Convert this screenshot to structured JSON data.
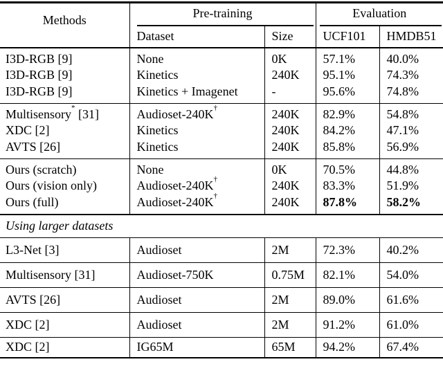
{
  "header": {
    "methods": "Methods",
    "pretraining_group": "Pre-training",
    "evaluation_group": "Evaluation",
    "columns": [
      "Dataset",
      "Size",
      "UCF101",
      "HMDB51"
    ]
  },
  "section_label": "Using larger datasets",
  "groups": [
    {
      "name": "supervised-baselines",
      "rows": [
        {
          "method": "I3D-RGB [9]",
          "dataset": "None",
          "size": "0K",
          "ucf101": "57.1%",
          "hmdb51": "40.0%"
        },
        {
          "method": "I3D-RGB [9]",
          "dataset": "Kinetics",
          "size": "240K",
          "ucf101": "95.1%",
          "hmdb51": "74.3%"
        },
        {
          "method": "I3D-RGB [9]",
          "dataset": "Kinetics + Imagenet",
          "size": "-",
          "ucf101": "95.6%",
          "hmdb51": "74.8%"
        }
      ]
    },
    {
      "name": "self-supervised-240k",
      "rows": [
        {
          "method": "Multisensory",
          "method_sup": "*",
          "method_ref": " [31]",
          "dataset": "Audioset-240K",
          "dataset_sup": "†",
          "size": "240K",
          "ucf101": "82.9%",
          "hmdb51": "54.8%"
        },
        {
          "method": "XDC [2]",
          "dataset": "Kinetics",
          "size": "240K",
          "ucf101": "84.2%",
          "hmdb51": "47.1%"
        },
        {
          "method": "AVTS [26]",
          "dataset": "Kinetics",
          "size": "240K",
          "ucf101": "85.8%",
          "hmdb51": "56.9%"
        }
      ]
    },
    {
      "name": "ours",
      "rows": [
        {
          "method": "Ours (scratch)",
          "dataset": "None",
          "size": "0K",
          "ucf101": "70.5%",
          "hmdb51": "44.8%"
        },
        {
          "method": "Ours (vision only)",
          "dataset": "Audioset-240K",
          "dataset_sup": "†",
          "size": "240K",
          "ucf101": "83.3%",
          "hmdb51": "51.9%"
        },
        {
          "method": "Ours (full)",
          "dataset": "Audioset-240K",
          "dataset_sup": "†",
          "size": "240K",
          "ucf101": "87.8%",
          "hmdb51": "58.2%",
          "bold_results": true
        }
      ]
    }
  ],
  "larger_rows": [
    {
      "method": "L3-Net [3]",
      "dataset": "Audioset",
      "size": "2M",
      "ucf101": "72.3%",
      "hmdb51": "40.2%"
    },
    {
      "method": "Multisensory [31]",
      "dataset": "Audioset-750K",
      "size": "0.75M",
      "ucf101": "82.1%",
      "hmdb51": "54.0%"
    },
    {
      "method": "AVTS [26]",
      "dataset": "Audioset",
      "size": "2M",
      "ucf101": "89.0%",
      "hmdb51": "61.6%"
    },
    {
      "method": "XDC [2]",
      "dataset": "Audioset",
      "size": "2M",
      "ucf101": "91.2%",
      "hmdb51": "61.0%"
    },
    {
      "method": "XDC [2]",
      "dataset": "IG65M",
      "size": "65M",
      "ucf101": "94.2%",
      "hmdb51": "67.4%"
    }
  ],
  "colors": {
    "text": "#000000",
    "rule": "#000000",
    "background": "#ffffff"
  }
}
